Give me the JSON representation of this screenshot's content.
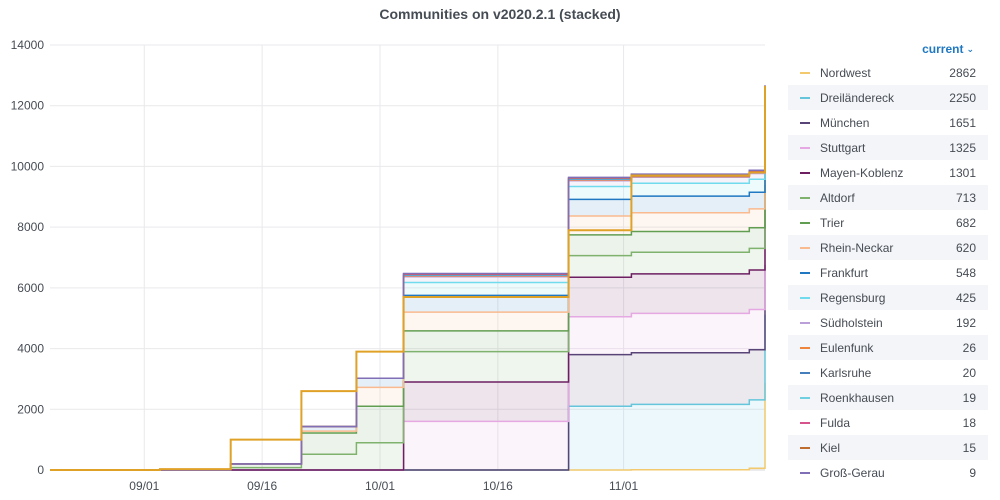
{
  "chart_data": {
    "type": "area",
    "stacked": true,
    "title": "Communities on v2020.2.1 (stacked)",
    "xlabel": "",
    "ylabel": "",
    "ylim": [
      0,
      14000
    ],
    "yticks": [
      0,
      2000,
      4000,
      6000,
      8000,
      10000,
      12000,
      14000
    ],
    "xticks": [
      "09/01",
      "09/16",
      "10/01",
      "10/16",
      "11/01"
    ],
    "xaxis": {
      "unit": "day",
      "range": [
        "2020-08-20",
        "2020-11-19"
      ],
      "tick_dates": [
        "2020-09-01",
        "2020-09-16",
        "2020-10-01",
        "2020-10-16",
        "2020-11-01"
      ]
    },
    "grid": true,
    "legend_position": "right",
    "legend_header": "current",
    "x": [
      "2020-08-20",
      "2020-09-03",
      "2020-09-12",
      "2020-09-21",
      "2020-09-28",
      "2020-10-04",
      "2020-10-25",
      "2020-11-02",
      "2020-11-17",
      "2020-11-19"
    ],
    "series": [
      {
        "name": "Nordwest",
        "color": "#f2c96d",
        "current": 2862,
        "values": [
          0,
          0,
          0,
          0,
          0,
          0,
          0,
          10,
          60,
          2862
        ]
      },
      {
        "name": "Dreiländereck",
        "color": "#65c5db",
        "current": 2250,
        "values": [
          0,
          0,
          0,
          0,
          0,
          0,
          2100,
          2150,
          2250,
          2250
        ]
      },
      {
        "name": "München",
        "color": "#584477",
        "current": 1651,
        "values": [
          0,
          0,
          0,
          0,
          0,
          0,
          1700,
          1700,
          1651,
          1651
        ]
      },
      {
        "name": "Stuttgart",
        "color": "#e5a8e2",
        "current": 1325,
        "values": [
          0,
          0,
          0,
          0,
          0,
          1600,
          1250,
          1300,
          1325,
          1325
        ]
      },
      {
        "name": "Mayen-Koblenz",
        "color": "#6d1f62",
        "current": 1301,
        "values": [
          0,
          0,
          0,
          0,
          0,
          1300,
          1301,
          1301,
          1301,
          1301
        ]
      },
      {
        "name": "Altdorf",
        "color": "#7eb26d",
        "current": 713,
        "values": [
          0,
          0,
          80,
          520,
          900,
          1000,
          713,
          713,
          713,
          713
        ]
      },
      {
        "name": "Trier",
        "color": "#629e51",
        "current": 682,
        "values": [
          0,
          0,
          120,
          700,
          1200,
          682,
          682,
          682,
          682,
          682
        ]
      },
      {
        "name": "Rhein-Neckar",
        "color": "#f9ba8f",
        "current": 620,
        "values": [
          0,
          0,
          0,
          60,
          620,
          620,
          620,
          620,
          620,
          620
        ]
      },
      {
        "name": "Frankfurt",
        "color": "#1f78c1",
        "current": 548,
        "values": [
          0,
          0,
          0,
          150,
          300,
          548,
          548,
          548,
          548,
          548
        ]
      },
      {
        "name": "Regensburg",
        "color": "#70dbed",
        "current": 425,
        "values": [
          0,
          0,
          0,
          0,
          0,
          425,
          425,
          425,
          425,
          425
        ]
      },
      {
        "name": "Südholstein",
        "color": "#ba9fd8",
        "current": 192,
        "values": [
          0,
          0,
          0,
          0,
          0,
          192,
          192,
          192,
          192,
          192
        ]
      },
      {
        "name": "Eulenfunk",
        "color": "#ef843c",
        "current": 26,
        "values": [
          0,
          0,
          0,
          0,
          0,
          26,
          26,
          26,
          26,
          26
        ]
      },
      {
        "name": "Karlsruhe",
        "color": "#447ebc",
        "current": 20,
        "values": [
          0,
          0,
          0,
          0,
          0,
          20,
          20,
          20,
          20,
          20
        ]
      },
      {
        "name": "Roenkhausen",
        "color": "#6ed0e0",
        "current": 19,
        "values": [
          0,
          0,
          0,
          0,
          0,
          19,
          19,
          19,
          19,
          19
        ]
      },
      {
        "name": "Fulda",
        "color": "#d6538c",
        "current": 18,
        "values": [
          0,
          0,
          0,
          0,
          0,
          18,
          18,
          18,
          18,
          18
        ]
      },
      {
        "name": "Kiel",
        "color": "#bf6d2f",
        "current": 15,
        "values": [
          0,
          0,
          0,
          0,
          0,
          15,
          15,
          15,
          15,
          15
        ]
      },
      {
        "name": "Groß-Gerau",
        "color": "#806eb7",
        "current": 9,
        "values": [
          0,
          0,
          0,
          0,
          0,
          9,
          9,
          9,
          9,
          9
        ]
      }
    ],
    "total_line": {
      "color": "#e0a127",
      "values": [
        0,
        30,
        1000,
        2600,
        3900,
        5700,
        7900,
        9700,
        9800,
        12650
      ]
    }
  }
}
